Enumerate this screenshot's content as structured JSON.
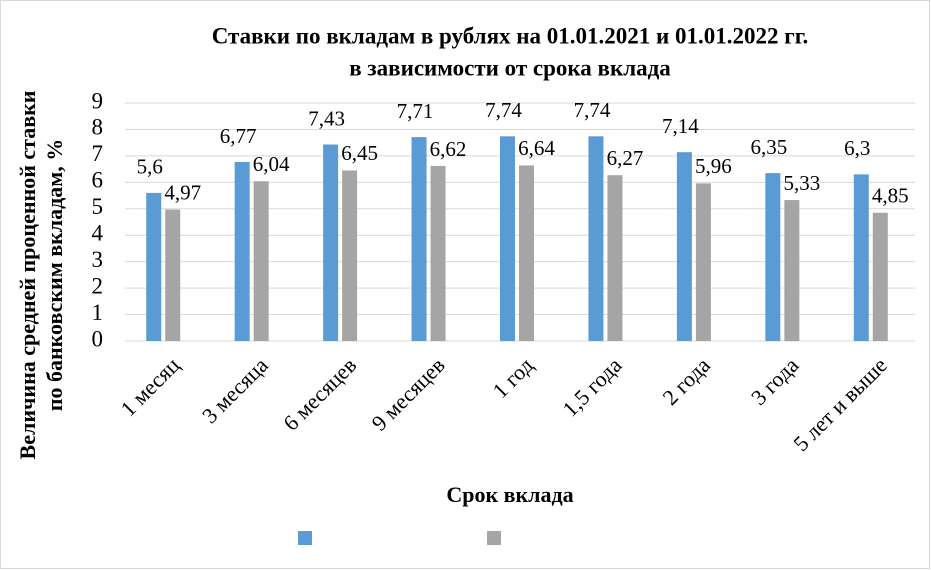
{
  "chart_data": {
    "type": "bar",
    "title": [
      "Ставки по вкладам в рублях на 01.01.2021 и 01.01.2022 гг.",
      "в зависимости от срока вклада"
    ],
    "x_label": "Срок вклада",
    "y_label": [
      "Величина средней проценной ставки",
      "по банковским вкладам, %"
    ],
    "categories": [
      "1 месяц",
      "3 месяца",
      "6 месяцев",
      "9 месяцев",
      "1 год",
      "1,5 года",
      "2 года",
      "3 года",
      "5 лет и выше"
    ],
    "series": [
      {
        "color": "#5b9bd5",
        "values": [
          5.6,
          6.77,
          7.43,
          7.71,
          7.74,
          7.74,
          7.14,
          6.35,
          6.3
        ],
        "value_labels": [
          "5,6",
          "6,77",
          "7,43",
          "7,71",
          "7,74",
          "7,74",
          "7,14",
          "6,35",
          "6,3"
        ]
      },
      {
        "color": "#a5a5a5",
        "values": [
          4.97,
          6.04,
          6.45,
          6.62,
          6.64,
          6.27,
          5.96,
          5.33,
          4.85
        ],
        "value_labels": [
          "4,97",
          "6,04",
          "6,45",
          "6,62",
          "6,64",
          "6,27",
          "5,96",
          "5,33",
          "4,85"
        ]
      }
    ],
    "ylim": [
      0,
      9
    ],
    "yticks": [
      0,
      1,
      2,
      3,
      4,
      5,
      6,
      7,
      8,
      9
    ],
    "grid": true
  }
}
